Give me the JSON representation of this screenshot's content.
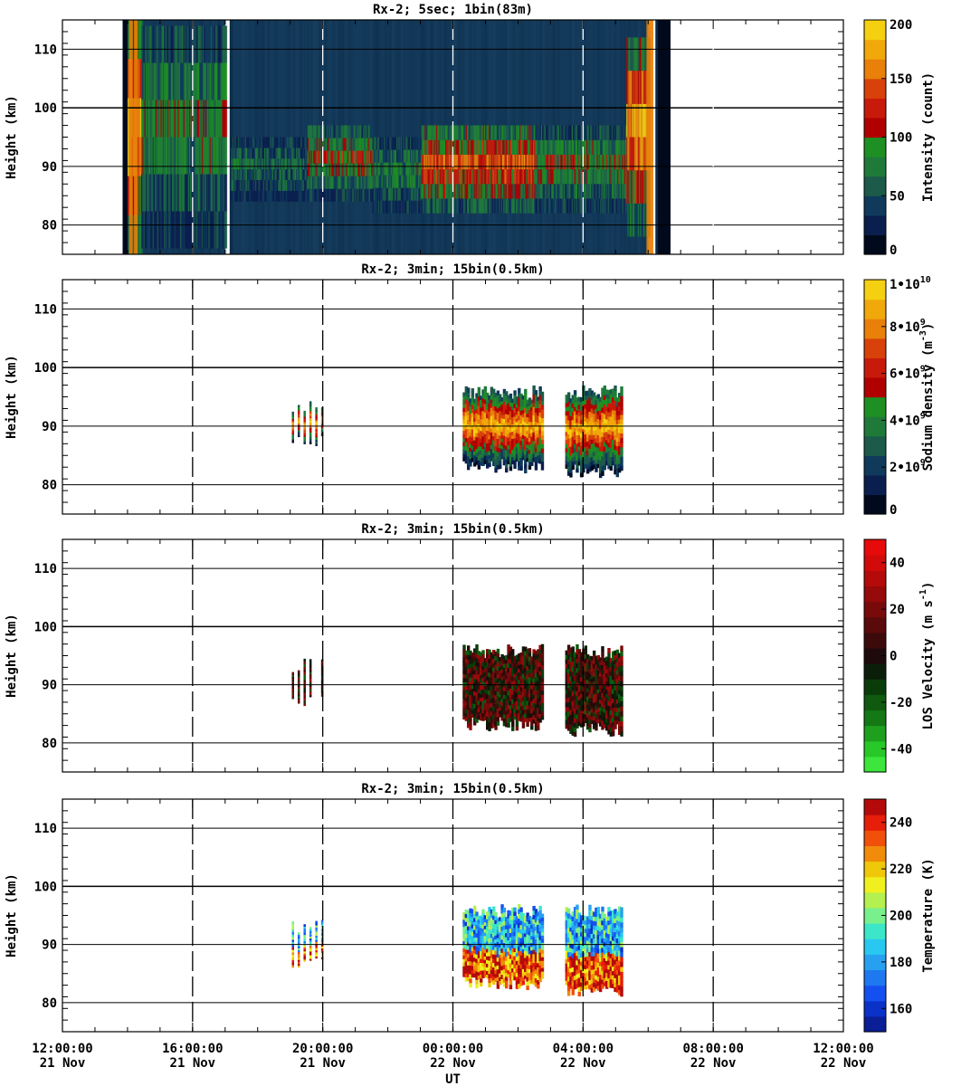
{
  "x_axis": {
    "label": "UT",
    "ticks": [
      {
        "time": "12:00:00",
        "date": "21 Nov"
      },
      {
        "time": "16:00:00",
        "date": "21 Nov"
      },
      {
        "time": "20:00:00",
        "date": "21 Nov"
      },
      {
        "time": "00:00:00",
        "date": "22 Nov"
      },
      {
        "time": "04:00:00",
        "date": "22 Nov"
      },
      {
        "time": "08:00:00",
        "date": "22 Nov"
      },
      {
        "time": "12:00:00",
        "date": "22 Nov"
      }
    ],
    "range_hours_from_start": [
      0,
      24
    ]
  },
  "chart_data": [
    {
      "type": "heatmap",
      "title": "Rx-2;  5sec; 1bin(83m)",
      "ylabel": "Height (km)",
      "ylim": [
        75,
        115
      ],
      "yticks": [
        80,
        90,
        100,
        110
      ],
      "colorbar": {
        "label": "Intensity (count)",
        "range": [
          0,
          200
        ],
        "ticks": [
          "0",
          "50",
          "100",
          "150",
          "200"
        ],
        "colors": [
          "#000a1c",
          "#0a1f4d",
          "#0f3a5c",
          "#1c5a4a",
          "#1f7a3a",
          "#1e8f22",
          "#b00000",
          "#c81a0a",
          "#d8420a",
          "#e8800a",
          "#f0a80a",
          "#f5d010"
        ]
      },
      "data_blocks": [
        {
          "start_hour": 1.9,
          "end_hour": 3.2,
          "description_hint": "high"
        },
        {
          "start_hour": 3.35,
          "end_hour": 18.3
        }
      ]
    },
    {
      "type": "heatmap",
      "title": "Rx-2; 3min; 15bin(0.5km)",
      "ylabel": "Height (km)",
      "ylim": [
        75,
        115
      ],
      "yticks": [
        80,
        90,
        100,
        110
      ],
      "colorbar": {
        "label": "Sodium density",
        "unit": "(m",
        "unit_exp": "-3",
        "unit_close": ")",
        "range": [
          0,
          10000000000
        ],
        "ticks": [
          {
            "value": 0,
            "mant": "0",
            "exp": ""
          },
          {
            "value": 2000000000,
            "mant": "2•10",
            "exp": "9"
          },
          {
            "value": 4000000000,
            "mant": "4•10",
            "exp": "9"
          },
          {
            "value": 6000000000,
            "mant": "6•10",
            "exp": "9"
          },
          {
            "value": 8000000000,
            "mant": "8•10",
            "exp": "9"
          },
          {
            "value": 10000000000,
            "mant": "1•10",
            "exp": "10"
          }
        ],
        "colors": [
          "#000a1c",
          "#0a1f4d",
          "#0f3a5c",
          "#1c5a4a",
          "#1f7a3a",
          "#1e8f22",
          "#b00000",
          "#c81a0a",
          "#d8420a",
          "#e8800a",
          "#f0a80a",
          "#f5d010"
        ]
      }
    },
    {
      "type": "heatmap",
      "title": "Rx-2; 3min; 15bin(0.5km)",
      "ylabel": "Height (km)",
      "ylim": [
        75,
        115
      ],
      "yticks": [
        80,
        90,
        100,
        110
      ],
      "colorbar": {
        "label": "LOS Velocity",
        "unit": "(m s",
        "unit_exp": "-1",
        "unit_close": ")",
        "range": [
          -50,
          50
        ],
        "ticks": [
          "-40",
          "-20",
          "0",
          "20",
          "40"
        ],
        "colors": [
          "#3ce63c",
          "#28c828",
          "#1ea01e",
          "#147814",
          "#0f5a0f",
          "#0a3c0a",
          "#0a1e0a",
          "#1e0a0a",
          "#3c0a0a",
          "#5a0a0a",
          "#780a0a",
          "#960a0a",
          "#b40a0a",
          "#d20a0a",
          "#e60a0a"
        ]
      }
    },
    {
      "type": "heatmap",
      "title": "Rx-2; 3min; 15bin(0.5km)",
      "ylabel": "Height (km)",
      "ylim": [
        75,
        115
      ],
      "yticks": [
        80,
        90,
        100,
        110
      ],
      "colorbar": {
        "label": "Temperature (K)",
        "range": [
          150,
          250
        ],
        "ticks": [
          "160",
          "180",
          "200",
          "220",
          "240"
        ],
        "colors": [
          "#0a1e96",
          "#0a32c8",
          "#1450f0",
          "#1e78f0",
          "#28a0f0",
          "#28c8f0",
          "#3ce6c8",
          "#78f08c",
          "#b4f050",
          "#f0f01e",
          "#f0c80a",
          "#f08c0a",
          "#f0500a",
          "#e61e0a",
          "#b40a0a"
        ]
      }
    }
  ],
  "colors": {
    "rx_block_dark": "#000a1c",
    "background_blue": "#0b2a4a",
    "white": "#ffffff"
  }
}
